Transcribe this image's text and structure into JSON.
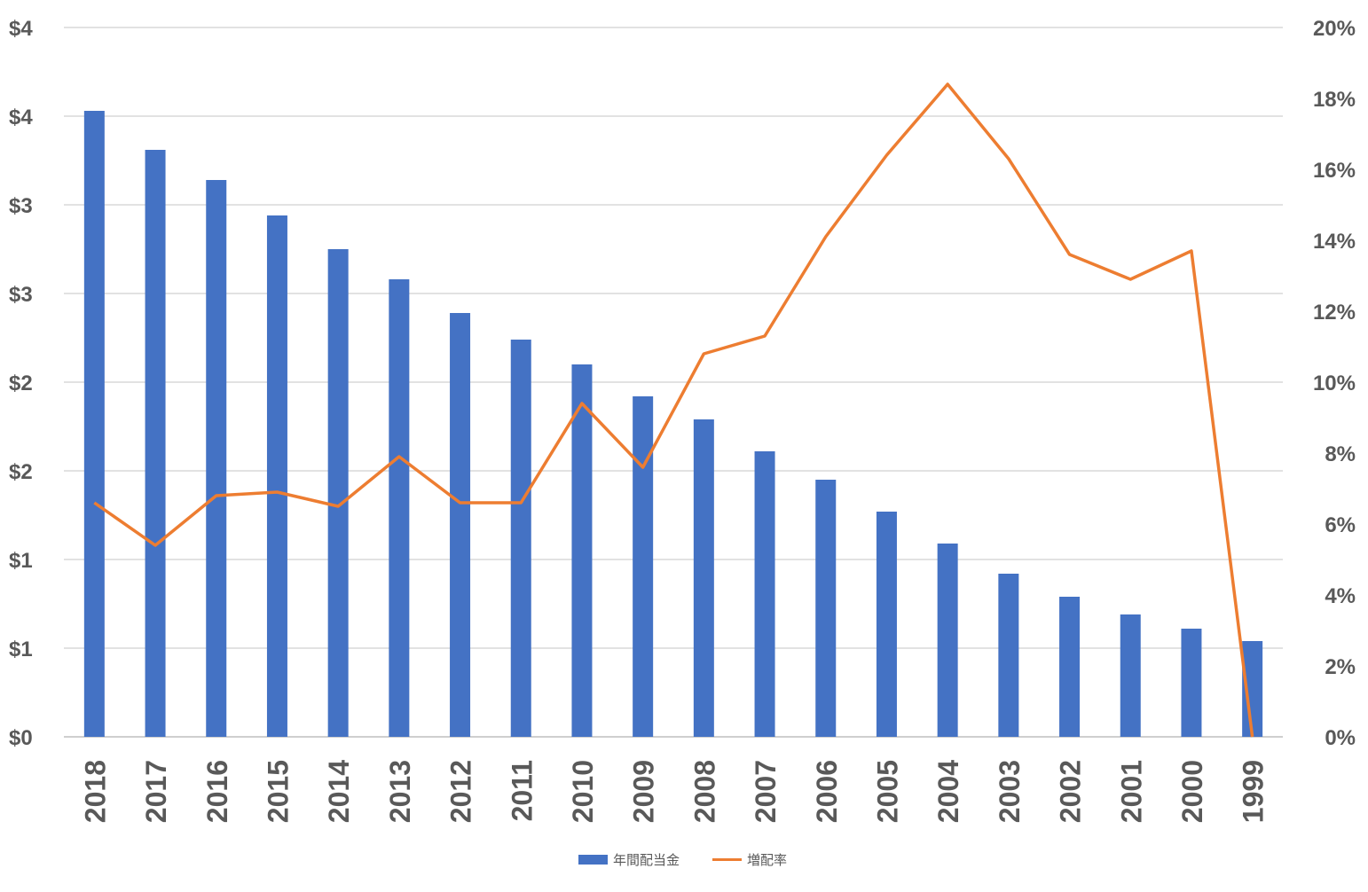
{
  "chart_data": {
    "type": "bar+line",
    "categories": [
      "2018",
      "2017",
      "2016",
      "2015",
      "2014",
      "2013",
      "2012",
      "2011",
      "2010",
      "2009",
      "2008",
      "2007",
      "2006",
      "2005",
      "2004",
      "2003",
      "2002",
      "2001",
      "2000",
      "1999"
    ],
    "series": [
      {
        "name": "年間配当金",
        "type": "bar",
        "axis": "left",
        "color": "#4472C4",
        "values": [
          3.53,
          3.31,
          3.14,
          2.94,
          2.75,
          2.58,
          2.39,
          2.24,
          2.1,
          1.92,
          1.79,
          1.61,
          1.45,
          1.27,
          1.09,
          0.92,
          0.79,
          0.69,
          0.61,
          0.54
        ]
      },
      {
        "name": "増配率",
        "type": "line",
        "axis": "right",
        "color": "#ED7D31",
        "values": [
          6.6,
          5.4,
          6.8,
          6.9,
          6.5,
          7.9,
          6.6,
          6.6,
          9.4,
          7.6,
          10.8,
          11.3,
          14.1,
          16.4,
          18.4,
          16.3,
          13.6,
          12.9,
          13.7,
          0.0
        ]
      }
    ],
    "yAxisLeft": {
      "ylim": [
        0,
        4
      ],
      "ticks": [
        0,
        0.5,
        1,
        1.5,
        2,
        2.5,
        3,
        3.5,
        4
      ],
      "tick_labels": [
        "$0",
        "$1",
        "$1",
        "$2",
        "$2",
        "$3",
        "$3",
        "$4",
        "$4"
      ]
    },
    "yAxisRight": {
      "ylim": [
        0,
        20
      ],
      "ticks": [
        0,
        2,
        4,
        6,
        8,
        10,
        12,
        14,
        16,
        18,
        20
      ],
      "tick_labels": [
        "0%",
        "2%",
        "4%",
        "6%",
        "8%",
        "10%",
        "12%",
        "14%",
        "16%",
        "18%",
        "20%"
      ]
    },
    "grid": true,
    "legend_position": "bottom"
  }
}
